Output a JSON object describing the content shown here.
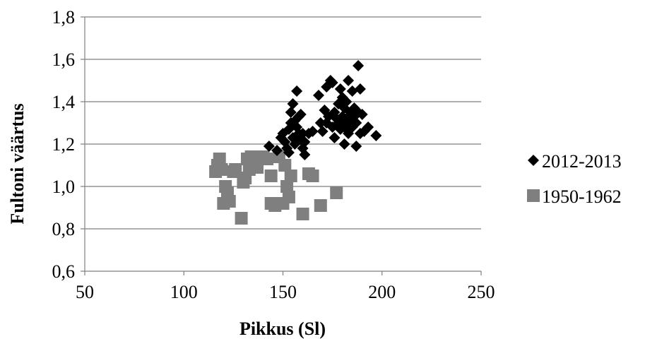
{
  "chart_data": {
    "type": "scatter",
    "title": "",
    "xlabel": "Pikkus (Sl)",
    "ylabel": "Fultoni väärtus",
    "xlim": [
      50,
      250
    ],
    "ylim": [
      0.6,
      1.8
    ],
    "x_ticks": [
      50,
      100,
      150,
      200,
      250
    ],
    "x_tick_labels": [
      "50",
      "100",
      "150",
      "200",
      "250"
    ],
    "y_ticks": [
      0.6,
      0.8,
      1.0,
      1.2,
      1.4,
      1.6,
      1.8
    ],
    "y_tick_labels": [
      "0,6",
      "0,8",
      "1,0",
      "1,2",
      "1,4",
      "1,6",
      "1,8"
    ],
    "grid": "horizontal",
    "legend_position": "right",
    "series": [
      {
        "name": "2012-2013",
        "marker": "diamond",
        "color": "#000000",
        "points": [
          [
            143,
            1.19
          ],
          [
            147,
            1.17
          ],
          [
            149,
            1.23
          ],
          [
            150,
            1.25
          ],
          [
            151,
            1.21
          ],
          [
            152,
            1.18
          ],
          [
            153,
            1.16
          ],
          [
            153,
            1.27
          ],
          [
            154,
            1.3
          ],
          [
            154,
            1.35
          ],
          [
            155,
            1.39
          ],
          [
            155,
            1.23
          ],
          [
            156,
            1.31
          ],
          [
            156,
            1.2
          ],
          [
            157,
            1.45
          ],
          [
            157,
            1.28
          ],
          [
            158,
            1.33
          ],
          [
            158,
            1.25
          ],
          [
            159,
            1.22
          ],
          [
            159,
            1.34
          ],
          [
            160,
            1.18
          ],
          [
            160,
            1.25
          ],
          [
            161,
            1.15
          ],
          [
            161,
            1.21
          ],
          [
            163,
            1.25
          ],
          [
            165,
            1.26
          ],
          [
            168,
            1.43
          ],
          [
            169,
            1.3
          ],
          [
            170,
            1.26
          ],
          [
            171,
            1.36
          ],
          [
            172,
            1.3
          ],
          [
            172,
            1.47
          ],
          [
            173,
            1.33
          ],
          [
            174,
            1.5
          ],
          [
            175,
            1.28
          ],
          [
            175,
            1.49
          ],
          [
            176,
            1.35
          ],
          [
            176,
            1.23
          ],
          [
            177,
            1.32
          ],
          [
            178,
            1.39
          ],
          [
            178,
            1.3
          ],
          [
            179,
            1.27
          ],
          [
            179,
            1.46
          ],
          [
            180,
            1.42
          ],
          [
            180,
            1.33
          ],
          [
            180,
            1.3
          ],
          [
            181,
            1.37
          ],
          [
            181,
            1.28
          ],
          [
            181,
            1.2
          ],
          [
            182,
            1.4
          ],
          [
            182,
            1.32
          ],
          [
            183,
            1.5
          ],
          [
            183,
            1.25
          ],
          [
            184,
            1.35
          ],
          [
            184,
            1.3
          ],
          [
            185,
            1.45
          ],
          [
            185,
            1.28
          ],
          [
            186,
            1.33
          ],
          [
            186,
            1.37
          ],
          [
            187,
            1.19
          ],
          [
            187,
            1.3
          ],
          [
            188,
            1.57
          ],
          [
            188,
            1.35
          ],
          [
            189,
            1.46
          ],
          [
            189,
            1.25
          ],
          [
            190,
            1.34
          ],
          [
            191,
            1.26
          ],
          [
            193,
            1.28
          ],
          [
            197,
            1.24
          ]
        ]
      },
      {
        "name": "1950-1962",
        "marker": "square",
        "color": "#7f7f7f",
        "points": [
          [
            116,
            1.07
          ],
          [
            117,
            1.1
          ],
          [
            118,
            1.13
          ],
          [
            119,
            1.08
          ],
          [
            120,
            0.92
          ],
          [
            121,
            1.0
          ],
          [
            122,
            0.97
          ],
          [
            123,
            0.93
          ],
          [
            125,
            1.07
          ],
          [
            126,
            1.08
          ],
          [
            129,
            0.85
          ],
          [
            130,
            1.02
          ],
          [
            131,
            1.04
          ],
          [
            132,
            1.13
          ],
          [
            133,
            1.08
          ],
          [
            134,
            1.14
          ],
          [
            135,
            1.12
          ],
          [
            136,
            1.13
          ],
          [
            137,
            1.09
          ],
          [
            138,
            1.14
          ],
          [
            140,
            1.14
          ],
          [
            142,
            1.13
          ],
          [
            144,
            1.05
          ],
          [
            144,
            0.92
          ],
          [
            146,
            0.91
          ],
          [
            148,
            1.14
          ],
          [
            150,
            0.92
          ],
          [
            151,
            1.1
          ],
          [
            152,
            1.0
          ],
          [
            153,
            0.95
          ],
          [
            154,
            1.05
          ],
          [
            160,
            0.87
          ],
          [
            163,
            1.06
          ],
          [
            165,
            1.05
          ],
          [
            169,
            0.91
          ],
          [
            177,
            0.97
          ]
        ]
      }
    ]
  }
}
